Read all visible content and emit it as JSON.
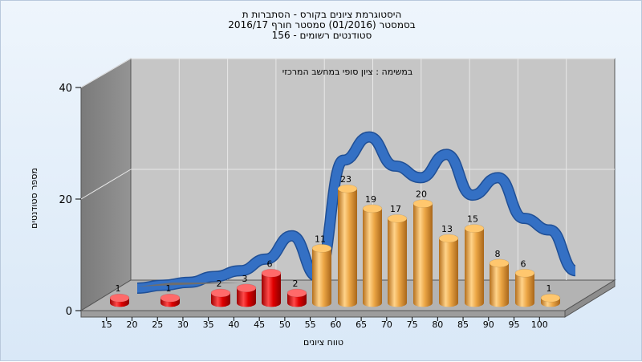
{
  "chart_data": {
    "type": "bar",
    "title_lines": [
      "היסטוגרמת ציונים בקורס - הסתברות ת",
      "בסמסטר  (01/2016)  סמסטר חורף 2016/17",
      "156 - סטודנטים רשומים"
    ],
    "inner_title": "במשימה : ציון סופי במחשב המרכזי",
    "xlabel": "טווח ציונים",
    "ylabel": "מספר סטודנטים",
    "ylim": [
      0,
      40
    ],
    "y_ticks": [
      0,
      20,
      40
    ],
    "x_ticks": [
      "15",
      "20",
      "25",
      "30",
      "35",
      "40",
      "45",
      "50",
      "55",
      "60",
      "65",
      "70",
      "75",
      "80",
      "85",
      "90",
      "95",
      "100"
    ],
    "bars": [
      {
        "bin": "15-20",
        "value": 1,
        "status": "fail"
      },
      {
        "bin": "25-30",
        "value": 1,
        "status": "fail"
      },
      {
        "bin": "35-40",
        "value": 2,
        "status": "fail"
      },
      {
        "bin": "40-45",
        "value": 3,
        "status": "fail"
      },
      {
        "bin": "45-50",
        "value": 6,
        "status": "fail"
      },
      {
        "bin": "50-55",
        "value": 2,
        "status": "fail"
      },
      {
        "bin": "55-60",
        "value": 11,
        "status": "pass"
      },
      {
        "bin": "60-65",
        "value": 23,
        "status": "pass"
      },
      {
        "bin": "65-70",
        "value": 19,
        "status": "pass"
      },
      {
        "bin": "70-75",
        "value": 17,
        "status": "pass"
      },
      {
        "bin": "75-80",
        "value": 20,
        "status": "pass"
      },
      {
        "bin": "80-85",
        "value": 13,
        "status": "pass"
      },
      {
        "bin": "85-90",
        "value": 15,
        "status": "pass"
      },
      {
        "bin": "90-95",
        "value": 8,
        "status": "pass"
      },
      {
        "bin": "95-100",
        "value": 6,
        "status": "pass"
      },
      {
        "bin": "100",
        "value": 1,
        "status": "pass"
      }
    ],
    "curve_values": [
      0,
      0.5,
      1,
      2,
      3,
      5,
      9,
      2,
      22,
      26,
      21,
      19,
      23,
      16,
      19,
      12,
      10,
      3
    ],
    "grid": true,
    "colors": {
      "fail": "#e00000",
      "pass": "#e8a23c",
      "curve": "#3470c4",
      "wall": "#808080",
      "plot_bg": "#c6c6c6"
    }
  }
}
